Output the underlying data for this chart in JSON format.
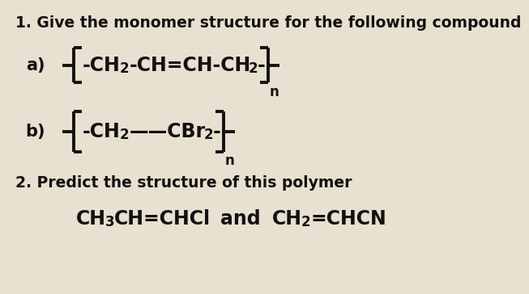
{
  "background_color": "#e8e0d0",
  "text_color": "#111111",
  "title1": "1. Give the monomer structure for the following compound",
  "title2": "2. Predict the structure of this polymer",
  "label_a": "a)",
  "label_b": "b)",
  "title_fontsize": 13.5,
  "label_fontsize": 15,
  "chem_fontsize": 17,
  "sub_fontsize": 12,
  "n_fontsize": 12,
  "bracket_lw": 2.8
}
